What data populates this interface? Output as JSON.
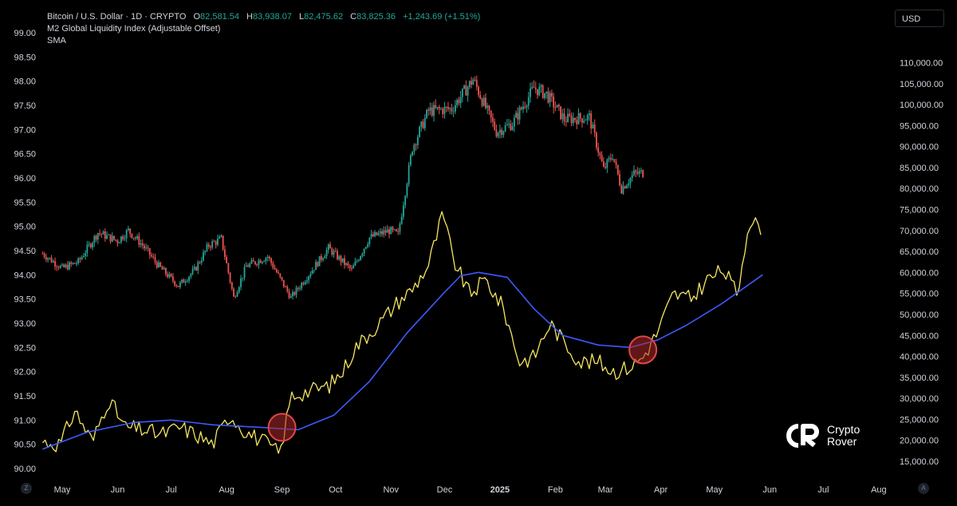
{
  "legend": {
    "symbol": "Bitcoin / U.S. Dollar · 1D · CRYPTO",
    "o_label": "O",
    "o_value": "82,581.54",
    "h_label": "H",
    "h_value": "83,938.07",
    "l_label": "L",
    "l_value": "82,475.62",
    "c_label": "C",
    "c_value": "83,825.36",
    "change": "+1,243.69 (+1.51%)",
    "indicator1": "M2 Global Liquidity Index (Adjustable Offset)",
    "indicator2": "SMA"
  },
  "currency_button": "USD",
  "corner_left": "Z",
  "corner_right": "A",
  "logo": {
    "line1": "Crypto",
    "line2": "Rover"
  },
  "colors": {
    "background": "#000000",
    "candle_up": "#26a69a",
    "candle_down": "#ef5350",
    "m2_line": "#f5e663",
    "sma_line": "#3d5afe",
    "marker_fill": "#b02a2a",
    "marker_stroke": "#e04848",
    "axis_text": "#d1d4dc"
  },
  "chart_data": {
    "type": "line",
    "x_labels": [
      "May",
      "Jun",
      "Jul",
      "Aug",
      "Sep",
      "Oct",
      "Nov",
      "Dec",
      "2025",
      "Feb",
      "Mar",
      "Apr",
      "May",
      "Jun",
      "Jul",
      "Aug"
    ],
    "left_axis": {
      "label": "",
      "range": [
        90.0,
        99.0
      ],
      "ticks": [
        "99.00",
        "98.50",
        "98.00",
        "97.50",
        "97.00",
        "96.50",
        "96.00",
        "95.50",
        "95.00",
        "94.50",
        "94.00",
        "93.50",
        "93.00",
        "92.50",
        "92.00",
        "91.50",
        "91.00",
        "90.50",
        "90.00"
      ]
    },
    "right_axis": {
      "label": "USD",
      "range": [
        15000,
        110000
      ],
      "ticks": [
        "110,000.00",
        "105,000.00",
        "100,000.00",
        "95,000.00",
        "90,000.00",
        "85,000.00",
        "80,000.00",
        "75,000.00",
        "70,000.00",
        "65,000.00",
        "60,000.00",
        "55,000.00",
        "50,000.00",
        "45,000.00",
        "40,000.00",
        "35,000.00",
        "30,000.00",
        "25,000.00",
        "20,000.00",
        "15,000.00"
      ]
    },
    "series": [
      {
        "name": "Bitcoin / U.S. Dollar",
        "kind": "candlestick",
        "axis": "right",
        "x": [
          "2024-04-20",
          "2024-05-01",
          "2024-05-10",
          "2024-05-21",
          "2024-06-01",
          "2024-06-07",
          "2024-06-15",
          "2024-06-24",
          "2024-07-05",
          "2024-07-14",
          "2024-07-22",
          "2024-07-29",
          "2024-08-05",
          "2024-08-12",
          "2024-08-24",
          "2024-09-06",
          "2024-09-15",
          "2024-09-27",
          "2024-10-10",
          "2024-10-20",
          "2024-10-31",
          "2024-11-05",
          "2024-11-13",
          "2024-11-22",
          "2024-12-05",
          "2024-12-17",
          "2024-12-30",
          "2025-01-08",
          "2025-01-20",
          "2025-01-27",
          "2025-02-06",
          "2025-02-20",
          "2025-02-28",
          "2025-03-05",
          "2025-03-10",
          "2025-03-17",
          "2025-03-22"
        ],
        "close": [
          64500,
          61000,
          62500,
          69500,
          67500,
          70000,
          66500,
          61500,
          56800,
          60500,
          66500,
          68000,
          54000,
          61500,
          63800,
          54000,
          59000,
          65800,
          60500,
          68300,
          70000,
          69000,
          89800,
          98500,
          99000,
          106000,
          93500,
          95500,
          104000,
          102500,
          96500,
          97000,
          84500,
          88000,
          80000,
          83500,
          83800
        ]
      },
      {
        "name": "M2 Global Liquidity Index (Adjustable Offset)",
        "kind": "line",
        "axis": "left",
        "x": [
          "2024-04-20",
          "2024-04-30",
          "2024-05-08",
          "2024-05-18",
          "2024-05-27",
          "2024-06-05",
          "2024-06-15",
          "2024-06-25",
          "2024-07-06",
          "2024-07-15",
          "2024-07-24",
          "2024-08-03",
          "2024-08-12",
          "2024-08-22",
          "2024-08-31",
          "2024-09-06",
          "2024-09-16",
          "2024-09-27",
          "2024-10-05",
          "2024-10-12",
          "2024-10-20",
          "2024-10-28",
          "2024-11-05",
          "2024-11-13",
          "2024-11-22",
          "2024-11-30",
          "2024-12-06",
          "2024-12-15",
          "2024-12-24",
          "2025-01-03",
          "2025-01-12",
          "2025-01-20",
          "2025-01-29",
          "2025-02-06",
          "2025-02-15",
          "2025-02-25",
          "2025-03-06",
          "2025-03-15",
          "2025-03-22",
          "2025-03-30",
          "2025-04-08",
          "2025-04-18",
          "2025-04-27",
          "2025-05-06",
          "2025-05-14",
          "2025-05-20",
          "2025-05-27"
        ],
        "y": [
          90.55,
          90.5,
          91.2,
          90.55,
          91.45,
          90.85,
          90.8,
          90.7,
          90.85,
          90.7,
          90.5,
          91.1,
          90.75,
          90.55,
          90.3,
          91.5,
          91.6,
          91.7,
          92.0,
          92.5,
          92.8,
          93.1,
          93.45,
          93.7,
          94.2,
          95.25,
          94.3,
          93.6,
          93.9,
          93.3,
          92.2,
          92.3,
          93.0,
          92.6,
          92.2,
          92.2,
          92.0,
          92.1,
          92.3,
          92.8,
          93.6,
          93.5,
          93.9,
          94.1,
          93.6,
          95.1,
          95.0
        ]
      },
      {
        "name": "SMA",
        "kind": "line",
        "axis": "left",
        "x": [
          "2024-04-20",
          "2024-05-15",
          "2024-06-10",
          "2024-07-01",
          "2024-07-25",
          "2024-08-20",
          "2024-09-10",
          "2024-09-30",
          "2024-10-20",
          "2024-11-10",
          "2024-11-30",
          "2024-12-10",
          "2024-12-20",
          "2025-01-05",
          "2025-01-20",
          "2025-02-05",
          "2025-02-25",
          "2025-03-15",
          "2025-03-30",
          "2025-04-15",
          "2025-05-05",
          "2025-05-28"
        ],
        "y": [
          90.4,
          90.75,
          90.95,
          91.0,
          90.9,
          90.85,
          90.8,
          91.1,
          91.8,
          92.8,
          93.6,
          93.98,
          94.05,
          93.95,
          93.3,
          92.75,
          92.55,
          92.5,
          92.65,
          92.95,
          93.4,
          94.0
        ]
      }
    ],
    "annotations": [
      {
        "kind": "circle",
        "x": "2024-09-01",
        "y": 90.85
      },
      {
        "kind": "circle",
        "x": "2025-03-22",
        "y": 92.45
      }
    ],
    "grid": false,
    "legend_placement": "top-left"
  }
}
